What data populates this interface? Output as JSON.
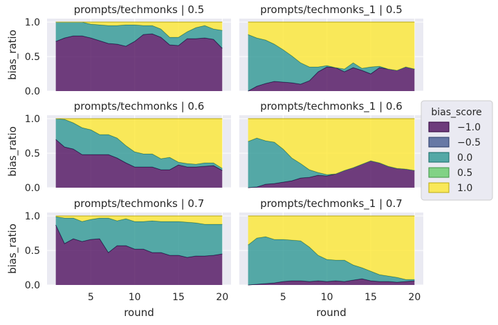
{
  "chart_data": {
    "type": "area",
    "stacked": true,
    "normalized": true,
    "xlabel": "round",
    "ylabel": "bias_ratio",
    "xlim": [
      0,
      21
    ],
    "ylim": [
      0,
      1.05
    ],
    "x_ticks": [
      5,
      10,
      15,
      20
    ],
    "y_ticks": [
      0.0,
      0.5,
      1.0
    ],
    "y_tick_labels": [
      "0.0",
      "0.5",
      "1.0"
    ],
    "grid": true,
    "legend": {
      "title": "bias_score",
      "placement": "right",
      "entries": [
        {
          "label": "−1.0",
          "color": "#440154"
        },
        {
          "label": "−0.5",
          "color": "#3b528b"
        },
        {
          "label": "0.0",
          "color": "#21918c"
        },
        {
          "label": "0.5",
          "color": "#5ec962"
        },
        {
          "label": "1.0",
          "color": "#fde725"
        }
      ]
    },
    "panels": [
      {
        "title": "prompts/techmonks | 0.5",
        "x": [
          1,
          2,
          3,
          4,
          5,
          6,
          7,
          8,
          9,
          10,
          11,
          12,
          13,
          14,
          15,
          16,
          17,
          18,
          19,
          20
        ],
        "layers": {
          "-1.0": [
            0.72,
            0.77,
            0.8,
            0.8,
            0.77,
            0.73,
            0.69,
            0.68,
            0.65,
            0.72,
            0.82,
            0.83,
            0.78,
            0.67,
            0.66,
            0.76,
            0.76,
            0.77,
            0.75,
            0.62
          ],
          "-0.5": [
            0,
            0,
            0,
            0,
            0,
            0,
            0,
            0,
            0,
            0,
            0,
            0,
            0,
            0,
            0,
            0,
            0,
            0,
            0,
            0
          ],
          "0.0": [
            0.28,
            0.23,
            0.2,
            0.2,
            0.2,
            0.23,
            0.26,
            0.27,
            0.31,
            0.24,
            0.13,
            0.12,
            0.12,
            0.11,
            0.12,
            0.1,
            0.16,
            0.18,
            0.15,
            0.26
          ],
          "0.5": [
            0,
            0,
            0,
            0,
            0,
            0,
            0,
            0,
            0,
            0,
            0,
            0,
            0,
            0,
            0,
            0,
            0,
            0,
            0,
            0
          ],
          "1.0": [
            0,
            0,
            0,
            0,
            0.03,
            0.04,
            0.05,
            0.05,
            0.04,
            0.04,
            0.05,
            0.05,
            0.1,
            0.22,
            0.22,
            0.14,
            0.08,
            0.05,
            0.1,
            0.12
          ]
        }
      },
      {
        "title": "prompts/techmonks_1 | 0.5",
        "x": [
          1,
          2,
          3,
          4,
          5,
          6,
          7,
          8,
          9,
          10,
          11,
          12,
          13,
          14,
          15,
          16,
          17,
          18,
          19,
          20
        ],
        "layers": {
          "-1.0": [
            0.0,
            0.07,
            0.11,
            0.14,
            0.13,
            0.12,
            0.1,
            0.15,
            0.28,
            0.35,
            0.34,
            0.28,
            0.34,
            0.3,
            0.25,
            0.34,
            0.32,
            0.3,
            0.35,
            0.32
          ],
          "-0.5": [
            0,
            0,
            0,
            0,
            0,
            0,
            0,
            0,
            0,
            0,
            0,
            0,
            0,
            0,
            0,
            0,
            0,
            0,
            0,
            0
          ],
          "0.0": [
            0.82,
            0.7,
            0.63,
            0.54,
            0.47,
            0.39,
            0.31,
            0.2,
            0.07,
            0.02,
            0.0,
            0.04,
            0.07,
            0.03,
            0.1,
            0.02,
            0.0,
            0.0,
            0.0,
            0.0
          ],
          "0.5": [
            0,
            0,
            0,
            0,
            0,
            0,
            0,
            0,
            0,
            0,
            0,
            0,
            0,
            0,
            0,
            0,
            0,
            0,
            0,
            0
          ],
          "1.0": [
            0.18,
            0.23,
            0.26,
            0.32,
            0.4,
            0.49,
            0.59,
            0.65,
            0.65,
            0.63,
            0.66,
            0.68,
            0.59,
            0.67,
            0.65,
            0.64,
            0.68,
            0.7,
            0.65,
            0.68
          ]
        }
      },
      {
        "title": "prompts/techmonks | 0.6",
        "x": [
          1,
          2,
          3,
          4,
          5,
          6,
          7,
          8,
          9,
          10,
          11,
          12,
          13,
          14,
          15,
          16,
          17,
          18,
          19,
          20
        ],
        "layers": {
          "-1.0": [
            0.7,
            0.59,
            0.56,
            0.48,
            0.48,
            0.48,
            0.48,
            0.43,
            0.36,
            0.3,
            0.3,
            0.3,
            0.26,
            0.26,
            0.33,
            0.3,
            0.3,
            0.31,
            0.32,
            0.25
          ],
          "-0.5": [
            0,
            0,
            0,
            0,
            0,
            0,
            0,
            0,
            0,
            0,
            0,
            0,
            0,
            0,
            0,
            0,
            0,
            0,
            0,
            0
          ],
          "0.0": [
            0.3,
            0.4,
            0.38,
            0.39,
            0.36,
            0.29,
            0.29,
            0.29,
            0.25,
            0.22,
            0.19,
            0.19,
            0.16,
            0.18,
            0.04,
            0.05,
            0.04,
            0.05,
            0.04,
            0.03
          ],
          "0.5": [
            0,
            0,
            0,
            0,
            0,
            0,
            0,
            0,
            0,
            0,
            0,
            0,
            0,
            0,
            0,
            0,
            0,
            0,
            0,
            0
          ],
          "1.0": [
            0,
            0.01,
            0.06,
            0.13,
            0.16,
            0.23,
            0.23,
            0.28,
            0.39,
            0.48,
            0.51,
            0.51,
            0.58,
            0.56,
            0.63,
            0.65,
            0.66,
            0.64,
            0.64,
            0.72
          ]
        }
      },
      {
        "title": "prompts/techmonks_1 | 0.6",
        "x": [
          1,
          2,
          3,
          4,
          5,
          6,
          7,
          8,
          9,
          10,
          11,
          12,
          13,
          14,
          15,
          16,
          17,
          18,
          19,
          20
        ],
        "layers": {
          "-1.0": [
            0.0,
            0.01,
            0.05,
            0.06,
            0.08,
            0.1,
            0.14,
            0.15,
            0.18,
            0.17,
            0.2,
            0.25,
            0.29,
            0.34,
            0.39,
            0.36,
            0.31,
            0.28,
            0.27,
            0.25
          ],
          "-0.5": [
            0,
            0,
            0,
            0,
            0,
            0,
            0,
            0,
            0,
            0,
            0,
            0,
            0,
            0,
            0,
            0,
            0,
            0,
            0,
            0
          ],
          "0.0": [
            0.67,
            0.71,
            0.63,
            0.6,
            0.48,
            0.33,
            0.21,
            0.11,
            0.04,
            0.02,
            0.0,
            0.0,
            0.0,
            0.0,
            0.0,
            0.0,
            0.0,
            0.0,
            0.0,
            0.0
          ],
          "0.5": [
            0,
            0,
            0,
            0,
            0,
            0,
            0,
            0,
            0,
            0,
            0,
            0,
            0,
            0,
            0,
            0,
            0,
            0,
            0,
            0
          ],
          "1.0": [
            0.33,
            0.28,
            0.32,
            0.34,
            0.44,
            0.57,
            0.65,
            0.74,
            0.78,
            0.81,
            0.8,
            0.75,
            0.71,
            0.66,
            0.61,
            0.64,
            0.69,
            0.72,
            0.73,
            0.75
          ]
        }
      },
      {
        "title": "prompts/techmonks | 0.7",
        "x": [
          1,
          2,
          3,
          4,
          5,
          6,
          7,
          8,
          9,
          10,
          11,
          12,
          13,
          14,
          15,
          16,
          17,
          18,
          19,
          20
        ],
        "layers": {
          "-1.0": [
            0.87,
            0.6,
            0.67,
            0.63,
            0.66,
            0.67,
            0.47,
            0.57,
            0.57,
            0.52,
            0.52,
            0.47,
            0.47,
            0.43,
            0.43,
            0.4,
            0.42,
            0.42,
            0.43,
            0.45
          ],
          "-0.5": [
            0,
            0,
            0,
            0,
            0,
            0,
            0,
            0,
            0,
            0,
            0,
            0,
            0,
            0,
            0,
            0,
            0,
            0,
            0,
            0
          ],
          "0.0": [
            0.12,
            0.37,
            0.3,
            0.29,
            0.29,
            0.3,
            0.5,
            0.36,
            0.39,
            0.4,
            0.4,
            0.46,
            0.45,
            0.49,
            0.49,
            0.51,
            0.48,
            0.46,
            0.45,
            0.43
          ],
          "0.5": [
            0,
            0,
            0,
            0,
            0,
            0,
            0,
            0,
            0,
            0,
            0,
            0,
            0,
            0,
            0,
            0,
            0,
            0,
            0,
            0
          ],
          "1.0": [
            0.01,
            0.03,
            0.03,
            0.08,
            0.05,
            0.03,
            0.03,
            0.07,
            0.04,
            0.08,
            0.08,
            0.07,
            0.08,
            0.08,
            0.08,
            0.09,
            0.1,
            0.12,
            0.12,
            0.12
          ]
        }
      },
      {
        "title": "prompts/techmonks_1 | 0.7",
        "x": [
          1,
          2,
          3,
          4,
          5,
          6,
          7,
          8,
          9,
          10,
          11,
          12,
          13,
          14,
          15,
          16,
          17,
          18,
          19,
          20
        ],
        "layers": {
          "-1.0": [
            0.0,
            0.01,
            0.02,
            0.03,
            0.05,
            0.06,
            0.06,
            0.05,
            0.06,
            0.05,
            0.06,
            0.05,
            0.07,
            0.09,
            0.06,
            0.05,
            0.05,
            0.04,
            0.05,
            0.06
          ],
          "-0.5": [
            0,
            0,
            0,
            0,
            0,
            0,
            0,
            0,
            0,
            0,
            0,
            0,
            0,
            0,
            0,
            0,
            0,
            0,
            0,
            0
          ],
          "0.0": [
            0.58,
            0.67,
            0.68,
            0.63,
            0.61,
            0.59,
            0.58,
            0.5,
            0.37,
            0.32,
            0.3,
            0.31,
            0.22,
            0.16,
            0.14,
            0.1,
            0.08,
            0.07,
            0.03,
            0.02
          ],
          "0.5": [
            0,
            0,
            0,
            0,
            0,
            0,
            0,
            0,
            0,
            0,
            0,
            0,
            0,
            0,
            0,
            0,
            0,
            0,
            0,
            0
          ],
          "1.0": [
            0.42,
            0.32,
            0.3,
            0.34,
            0.34,
            0.35,
            0.36,
            0.45,
            0.57,
            0.63,
            0.64,
            0.64,
            0.71,
            0.75,
            0.8,
            0.85,
            0.87,
            0.89,
            0.92,
            0.92
          ]
        }
      }
    ]
  }
}
